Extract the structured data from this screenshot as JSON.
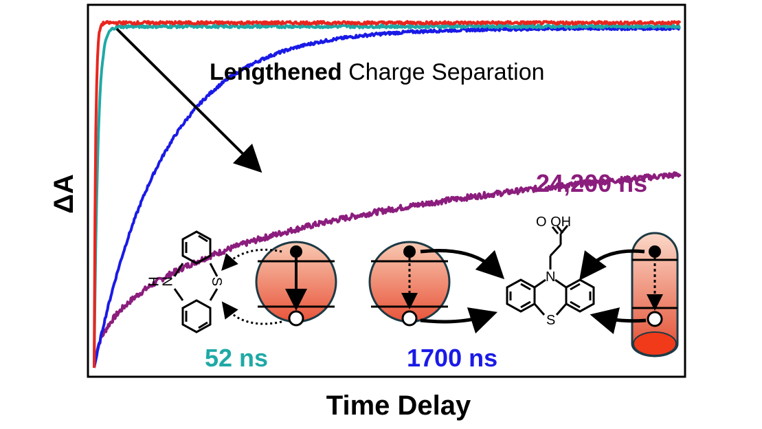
{
  "chart_data": {
    "type": "line",
    "xlabel": "Time Delay",
    "ylabel": "ΔA",
    "annotation": {
      "bold": "Lengthened",
      "rest": " Charge Separation"
    },
    "series": [
      {
        "lifetime_label": "",
        "color": "#e8261f",
        "tau_rel": 0.0025,
        "amp": 0.965,
        "noise": 0.004
      },
      {
        "lifetime_label": "52 ns",
        "color": "#1fa9a6",
        "tau_rel": 0.0063,
        "amp": 0.955,
        "noise": 0.004
      },
      {
        "lifetime_label": "1700 ns",
        "color": "#1a1ae6",
        "tau_rel": 0.12,
        "amp": 0.95,
        "noise": 0.004
      },
      {
        "lifetime_label": "24,200 ns",
        "color": "#8b1d7d",
        "tau_rel": 1.0,
        "amp": 0.72,
        "noise": 0.008
      }
    ],
    "grid": false,
    "legend": "none"
  },
  "molecules": {
    "left_N_label": "N",
    "left_H_label": "H",
    "left_S_label": "S",
    "right_N_label": "N",
    "right_S_label": "S",
    "cooh_label": "O OH"
  },
  "colors": {
    "dye_fill_top": "#f7c2a8",
    "dye_fill_bottom": "#e8553a",
    "dye_stroke": "#1d3a45"
  }
}
